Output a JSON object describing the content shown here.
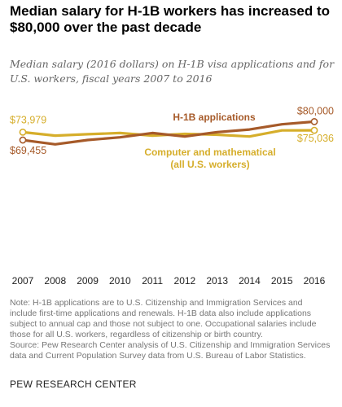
{
  "title": "Median salary for H-1B workers has increased to $80,000 over the past decade",
  "subtitle": "Median salary (2016 dollars) on H-1B visa applications and for U.S. workers, fiscal years 2007 to 2016",
  "note_lines": [
    "Note: H-1B applications are to U.S. Citizenship and Immigration Services and",
    "include first-time applications and renewals. H-1B data also include applications",
    "subject to annual cap and those not subject to one. Occupational salaries include",
    "those for all U.S. workers, regardless of citizenship or birth country.",
    "Source: Pew Research Center analysis of U.S. Citizenship and Immigration Services",
    "data and Current Population Survey data from U.S. Bureau of Labor Statistics."
  ],
  "credit": "PEW RESEARCH CENTER",
  "colors": {
    "h1b": "#a65a29",
    "us_workers": "#d6ae2b",
    "h1b_label": "#a65a29",
    "us_label": "#d6ae2b",
    "axis_text": "#222222",
    "value_label": "#a65a29",
    "value_label_us": "#d6ae2b"
  },
  "chart_data": {
    "type": "line",
    "title": "Median salary for H-1B workers has increased to $80,000 over the past decade",
    "subtitle": "Median salary (2016 dollars) on H-1B visa applications and for U.S. workers, fiscal years 2007 to 2016",
    "x": [
      2007,
      2008,
      2009,
      2010,
      2011,
      2012,
      2013,
      2014,
      2015,
      2016
    ],
    "ylim": [
      0,
      90000
    ],
    "grid": false,
    "series": [
      {
        "name": "H-1B applications",
        "values": [
          69455,
          67000,
          69500,
          71000,
          73500,
          71500,
          74000,
          75500,
          78500,
          80000
        ],
        "start_label": "$69,455",
        "end_label": "$80,000"
      },
      {
        "name": "Computer and mathematical (all U.S. workers)",
        "name_lines": [
          "Computer and mathematical",
          "(all U.S. workers)"
        ],
        "values": [
          73979,
          72000,
          72800,
          73500,
          72000,
          73000,
          72500,
          71500,
          75000,
          75036
        ],
        "start_label": "$73,979",
        "end_label": "$75,036"
      }
    ]
  }
}
